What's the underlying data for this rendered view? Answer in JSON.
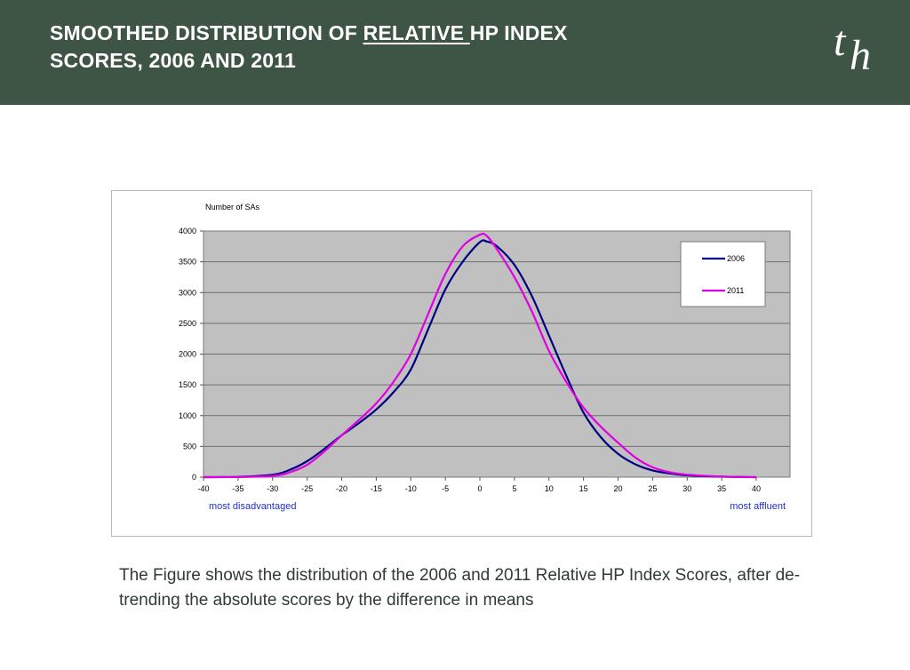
{
  "header": {
    "title_part1": "SMOOTHED DISTRIBUTION OF ",
    "title_underlined": "RELATIVE ",
    "title_part2": "HP INDEX",
    "title_line2": "SCORES, 2006 AND 2011",
    "logo_t": "t",
    "logo_h": "h",
    "background_color": "#3e5444"
  },
  "caption": "The Figure shows the distribution of the 2006 and 2011 Relative HP Index Scores, after de-trending the absolute scores by the difference in means",
  "chart_data": {
    "type": "line",
    "title": "",
    "ylabel": "Number of SAs",
    "xlabel": "",
    "xlim": [
      -40,
      40
    ],
    "ylim": [
      0,
      4000
    ],
    "x_ticks": [
      -40,
      -35,
      -30,
      -25,
      -20,
      -15,
      -10,
      -5,
      0,
      5,
      10,
      15,
      20,
      25,
      30,
      35,
      40
    ],
    "y_ticks": [
      0,
      500,
      1000,
      1500,
      2000,
      2500,
      3000,
      3500,
      4000
    ],
    "grid": "horizontal",
    "plot_background": "#c0c0c0",
    "legend_position": "top-right",
    "annotations": {
      "left": "most disadvantaged",
      "right": "most affluent",
      "color": "#1f2fd0"
    },
    "series": [
      {
        "name": "2006",
        "color": "#000080",
        "x": [
          -40,
          -35,
          -30,
          -27.5,
          -25,
          -22.5,
          -20,
          -17.5,
          -15,
          -12.5,
          -10,
          -7.5,
          -5,
          -2.5,
          0,
          1,
          2.5,
          5,
          7.5,
          10,
          12.5,
          15,
          17.5,
          20,
          22.5,
          25,
          27.5,
          30,
          35,
          40
        ],
        "y": [
          0,
          5,
          40,
          120,
          260,
          460,
          680,
          880,
          1100,
          1380,
          1750,
          2400,
          3050,
          3500,
          3820,
          3830,
          3750,
          3450,
          2950,
          2300,
          1650,
          1050,
          650,
          380,
          210,
          110,
          60,
          30,
          8,
          0
        ]
      },
      {
        "name": "2011",
        "color": "#e000e0",
        "x": [
          -40,
          -35,
          -30,
          -27.5,
          -25,
          -22.5,
          -20,
          -17.5,
          -15,
          -12.5,
          -10,
          -7.5,
          -5,
          -2.5,
          0,
          1,
          2.5,
          5,
          7.5,
          10,
          12.5,
          15,
          17.5,
          20,
          22.5,
          25,
          27.5,
          30,
          35,
          40
        ],
        "y": [
          0,
          3,
          20,
          80,
          200,
          420,
          680,
          930,
          1200,
          1550,
          2000,
          2650,
          3300,
          3750,
          3940,
          3920,
          3700,
          3250,
          2700,
          2050,
          1550,
          1130,
          820,
          560,
          320,
          160,
          80,
          40,
          10,
          0
        ]
      }
    ]
  }
}
